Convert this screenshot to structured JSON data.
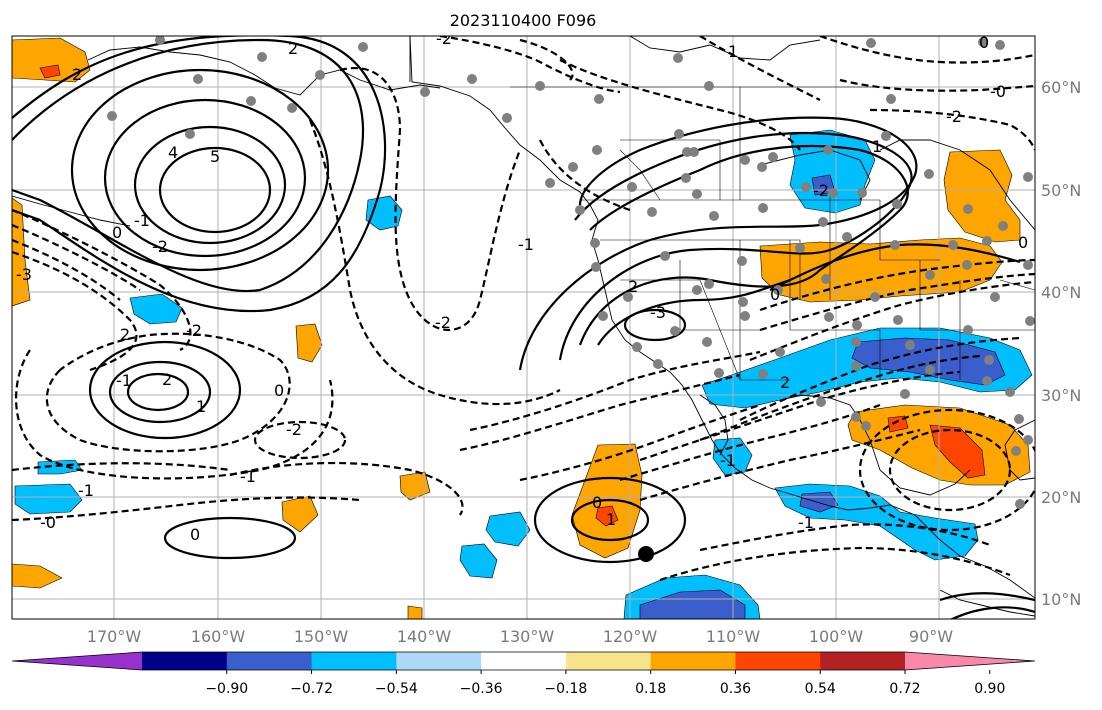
{
  "title": "2023110400 F096",
  "lon_labels": [
    "170°W",
    "160°W",
    "150°W",
    "140°W",
    "130°W",
    "120°W",
    "110°W",
    "100°W",
    "90°W"
  ],
  "lat_labels": [
    "60°N",
    "50°N",
    "40°N",
    "30°N",
    "20°N",
    "10°N"
  ],
  "colorbar": {
    "colors": [
      "#9932cc",
      "#00008b",
      "#3a5fcd",
      "#00bfff",
      "#add8f6",
      "#ffffff",
      "#f8e48c",
      "#ffa500",
      "#ff4500",
      "#b22222",
      "#f988ab"
    ],
    "tick_labels": [
      "−0.90",
      "−0.72",
      "−0.54",
      "−0.36",
      "−0.18",
      "0.18",
      "0.36",
      "0.54",
      "0.72",
      "0.90"
    ]
  },
  "contour_labels": [
    "2",
    "2",
    "-2",
    "1",
    "0",
    "-0",
    "-2",
    "4",
    "5",
    "-1",
    "0",
    "-2",
    "-1",
    "1",
    "-3",
    "2",
    "0",
    "-2",
    "2",
    "-2",
    "-2",
    "-3",
    "2",
    "1",
    "-1",
    "0",
    "-1",
    "-2",
    "2",
    "0",
    "1",
    "0",
    "-1",
    "-1",
    "-0",
    "-1",
    "0"
  ],
  "colors": {
    "gray_station": "#808080",
    "positive_orange": "#ffa500",
    "negative_blue": "#00bfff"
  }
}
